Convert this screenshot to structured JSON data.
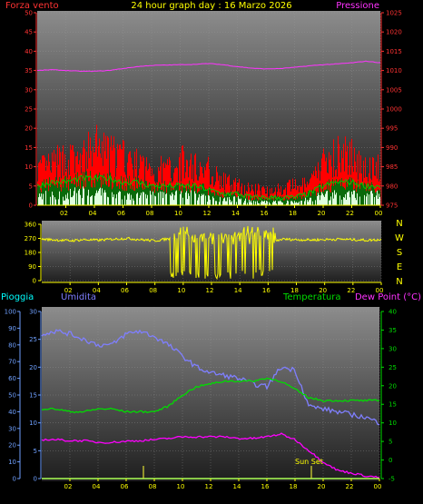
{
  "header": {
    "left_label": "Forza vento",
    "center_label": "24 hour graph day : 16 Marzo 2026",
    "right_label": "Pressione"
  },
  "colors": {
    "wind": "#ff0000",
    "gust": "#00cc00",
    "pressure": "#ff33ff",
    "direction": "#ffff00",
    "humidity": "#7f7fff",
    "temperature": "#00dd00",
    "dewpoint": "#ff00ff",
    "rain": "#00ffff",
    "tick_red": "#ff3333",
    "tick_blue": "#6fa0ff",
    "tick_green": "#00dd00",
    "tick_yellow": "#ffff00"
  },
  "compass": [
    "N",
    "W",
    "S",
    "E",
    "N"
  ],
  "sun_label": "Sun Set",
  "chart_data": [
    {
      "type": "line",
      "id": "wind_pressure",
      "xticks": [
        "02",
        "04",
        "06",
        "08",
        "10",
        "12",
        "14",
        "16",
        "18",
        "20",
        "22",
        "00"
      ],
      "left_axis": {
        "label": "Forza vento",
        "ticks": [
          0,
          5,
          10,
          15,
          20,
          25,
          30,
          35,
          40,
          45,
          50
        ],
        "ylim": [
          0,
          50
        ]
      },
      "right_axis": {
        "label": "Pressione",
        "ticks": [
          975,
          980,
          985,
          990,
          995,
          1000,
          1005,
          1010,
          1015,
          1020,
          1025
        ],
        "ylim": [
          975,
          1025
        ]
      },
      "series": [
        {
          "name": "Pressione",
          "axis": "right",
          "x": [
            0,
            1,
            2,
            3,
            4,
            5,
            6,
            7,
            8,
            9,
            10,
            11,
            12,
            13,
            14,
            15,
            16,
            17,
            18,
            19,
            20,
            21,
            22,
            23,
            24
          ],
          "values": [
            1010,
            1010.2,
            1010,
            1009.8,
            1009.8,
            1010,
            1010.5,
            1011,
            1011.3,
            1011.4,
            1011.5,
            1011.6,
            1011.8,
            1011.5,
            1011,
            1010.6,
            1010.4,
            1010.5,
            1010.8,
            1011.2,
            1011.5,
            1011.7,
            1012,
            1012.4,
            1012
          ]
        },
        {
          "axis": "left",
          "x": [
            0,
            1,
            2,
            3,
            4,
            5,
            6,
            7,
            8,
            9,
            10,
            11,
            12,
            13,
            14,
            15,
            16,
            17,
            18,
            19,
            20,
            21,
            22,
            23,
            24
          ],
          "values": [
            9,
            10,
            12,
            11,
            15,
            13,
            12,
            10,
            9,
            9,
            11,
            10,
            9,
            6,
            5,
            4,
            4,
            4,
            5,
            5,
            11,
            13,
            12,
            10,
            9
          ]
        },
        {
          "axis": "left",
          "x": [
            0,
            1,
            2,
            3,
            4,
            5,
            6,
            7,
            8,
            9,
            10,
            11,
            12,
            13,
            14,
            15,
            16,
            17,
            18,
            19,
            20,
            21,
            22,
            23,
            24
          ],
          "values": [
            5,
            6,
            6,
            7,
            7,
            7,
            6,
            6,
            5,
            5,
            5,
            5,
            4,
            3,
            3,
            2,
            2,
            2,
            2,
            3,
            5,
            6,
            6,
            5,
            5
          ]
        },
        {
          "axis": "left",
          "x": [
            0,
            1,
            2,
            3,
            4,
            5,
            6,
            7,
            8,
            9,
            10,
            11,
            12,
            13,
            14,
            15,
            16,
            17,
            18,
            19,
            20,
            21,
            22,
            23,
            24
          ],
          "values": [
            3,
            3,
            3,
            4,
            4,
            3,
            3,
            3,
            3,
            3,
            3,
            3,
            2,
            2,
            2,
            1,
            1,
            1,
            1,
            2,
            3,
            3,
            3,
            3,
            3
          ]
        }
      ]
    },
    {
      "type": "scatter",
      "id": "wind_direction",
      "xticks": [
        "02",
        "04",
        "06",
        "08",
        "10",
        "12",
        "14",
        "16",
        "18",
        "20",
        "22",
        "00"
      ],
      "left_axis": {
        "ticks": [
          0,
          90,
          180,
          270,
          360
        ],
        "ylim": [
          0,
          360
        ]
      },
      "series": [
        {
          "axis": "left",
          "x": [
            0,
            1,
            2,
            3,
            4,
            5,
            6,
            7,
            8,
            9,
            10,
            11,
            12,
            13,
            14,
            15,
            16,
            17,
            18,
            19,
            20,
            21,
            22,
            23,
            24
          ],
          "values": [
            265,
            260,
            255,
            262,
            258,
            265,
            270,
            262,
            255,
            268,
            240,
            190,
            200,
            230,
            260,
            250,
            240,
            265,
            262,
            260,
            262,
            265,
            262,
            258,
            262
          ]
        }
      ]
    },
    {
      "type": "line",
      "id": "temp_hum",
      "xticks": [
        "02",
        "04",
        "06",
        "08",
        "10",
        "12",
        "14",
        "16",
        "18",
        "20",
        "22",
        "00"
      ],
      "left_outer_axis": {
        "label": "Pioggia",
        "ticks": [
          0,
          10,
          20,
          30,
          40,
          50,
          60,
          70,
          80,
          90,
          100
        ],
        "ylim": [
          0,
          100
        ]
      },
      "left_inner_axis": {
        "label": "Umidita",
        "ticks": [
          0,
          5,
          10,
          15,
          20,
          25,
          30
        ],
        "ylim": [
          0,
          30
        ]
      },
      "right_axis": {
        "label": "Dew Point (°C)",
        "ticks": [
          -5,
          0,
          5,
          10,
          15,
          20,
          25,
          30,
          35,
          40
        ],
        "ylim": [
          -5,
          40
        ]
      },
      "temperature_label": "Temperatura",
      "series": [
        {
          "name": "Umidita",
          "axis": "left_inner",
          "x": [
            0,
            1,
            2,
            3,
            4,
            5,
            6,
            7,
            8,
            9,
            10,
            11,
            12,
            13,
            14,
            15,
            16,
            17,
            18,
            19,
            20,
            21,
            22,
            23,
            24
          ],
          "values": [
            26,
            26.5,
            26,
            25,
            24,
            24,
            26,
            26.5,
            25.5,
            24,
            22,
            20,
            19,
            18.5,
            18,
            17,
            16.5,
            20,
            19.5,
            13,
            12.5,
            12,
            11.5,
            11,
            10
          ]
        },
        {
          "name": "Temperatura",
          "axis": "left_inner",
          "x": [
            0,
            1,
            2,
            3,
            4,
            5,
            6,
            7,
            8,
            9,
            10,
            11,
            12,
            13,
            14,
            15,
            16,
            17,
            18,
            19,
            20,
            21,
            22,
            23,
            24
          ],
          "values": [
            12.5,
            12.5,
            12,
            12,
            12.5,
            12.5,
            12,
            12,
            12,
            13,
            15,
            16.5,
            17,
            17.5,
            17.5,
            17.5,
            18,
            17.5,
            16,
            14.5,
            14,
            14,
            14,
            14,
            14
          ]
        },
        {
          "name": "Dew Point",
          "axis": "left_inner",
          "x": [
            0,
            1,
            2,
            3,
            4,
            5,
            6,
            7,
            8,
            9,
            10,
            11,
            12,
            13,
            14,
            15,
            16,
            17,
            18,
            19,
            20,
            21,
            22,
            23,
            24
          ],
          "values": [
            7,
            7,
            6.8,
            6.8,
            6.5,
            6.5,
            6.7,
            6.8,
            7,
            7.2,
            7.5,
            7.5,
            7.5,
            7.5,
            7.2,
            7.2,
            7.5,
            8,
            7,
            5,
            3,
            1.5,
            1,
            0.5,
            0.2
          ]
        },
        {
          "name": "Pioggia",
          "axis": "left_outer",
          "x": [
            0,
            24
          ],
          "values": [
            0,
            0
          ]
        }
      ]
    }
  ]
}
